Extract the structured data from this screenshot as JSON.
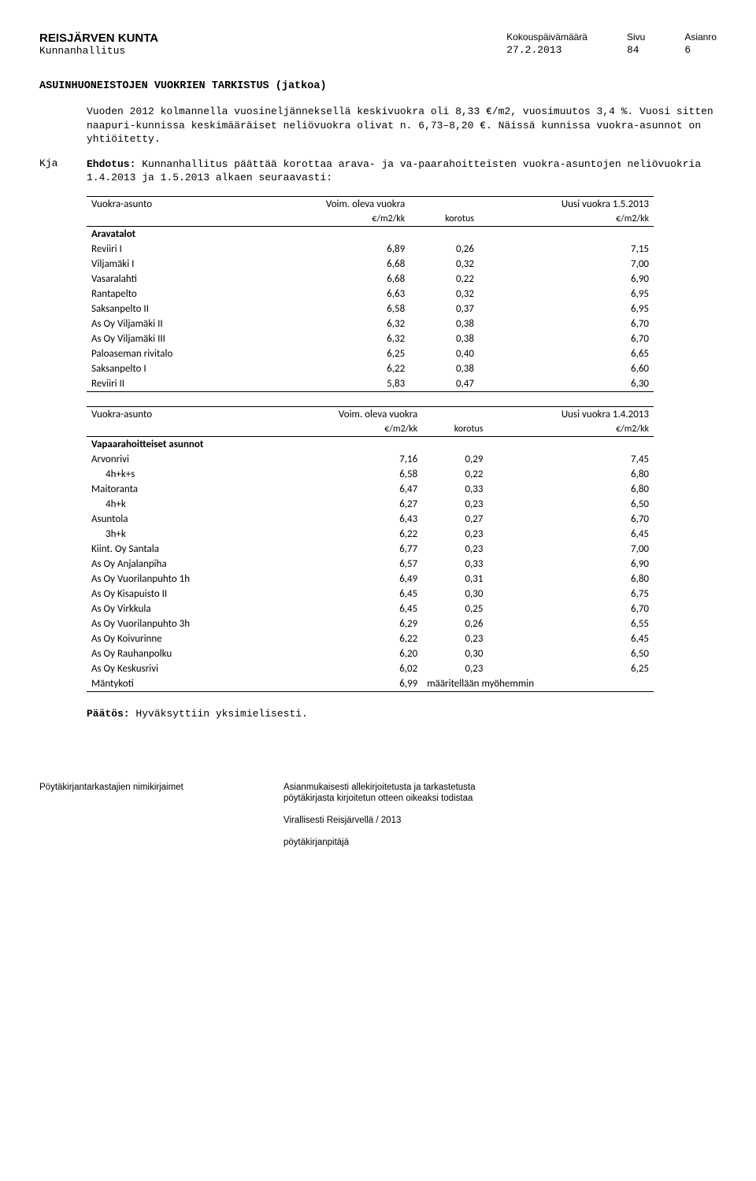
{
  "header": {
    "org": "REISJÄRVEN KUNTA",
    "org_sub": "Kunnanhallitus",
    "date_label": "Kokouspäivämäärä",
    "date": "27.2.2013",
    "page_label": "Sivu",
    "page": "84",
    "asia_label": "Asianro",
    "asia": "6"
  },
  "title": "ASUINHUONEISTOJEN VUOKRIEN TARKISTUS (jatkoa)",
  "para1": "Vuoden 2012 kolmannella vuosineljänneksellä keskivuokra oli 8,33 €/m2, vuosimuutos 3,4 %. Vuosi sitten naapuri-kunnissa keskimääräiset neliövuokra olivat n. 6,73–8,20 €. Näissä kunnissa vuokra-asunnot on yhtiöitetty.",
  "kja_label": "Kja",
  "kja_body_prefix": "Ehdotus:",
  "kja_body": " Kunnanhallitus päättää korottaa arava- ja va-paarahoitteisten vuokra-asuntojen neliövuokria 1.4.2013 ja 1.5.2013 alkaen seuraavasti:",
  "table1": {
    "h1": "Vuokra-asunto",
    "h2": "Voim. oleva vuokra",
    "h3": "Uusi vuokra 1.5.2013",
    "s2": "€/m2/kk",
    "s3": "korotus",
    "s4": "€/m2/kk",
    "group": "Aravatalot",
    "rows": [
      {
        "n": "Reviiri I",
        "a": "6,89",
        "b": "0,26",
        "c": "7,15"
      },
      {
        "n": "Viljamäki I",
        "a": "6,68",
        "b": "0,32",
        "c": "7,00"
      },
      {
        "n": "Vasaralahti",
        "a": "6,68",
        "b": "0,22",
        "c": "6,90"
      },
      {
        "n": "Rantapelto",
        "a": "6,63",
        "b": "0,32",
        "c": "6,95"
      },
      {
        "n": "Saksanpelto II",
        "a": "6,58",
        "b": "0,37",
        "c": "6,95"
      },
      {
        "n": "As Oy Viljamäki II",
        "a": "6,32",
        "b": "0,38",
        "c": "6,70"
      },
      {
        "n": "As Oy Viljamäki III",
        "a": "6,32",
        "b": "0,38",
        "c": "6,70"
      },
      {
        "n": "Paloaseman rivitalo",
        "a": "6,25",
        "b": "0,40",
        "c": "6,65"
      },
      {
        "n": "Saksanpelto I",
        "a": "6,22",
        "b": "0,38",
        "c": "6,60"
      },
      {
        "n": "Reviiri II",
        "a": "5,83",
        "b": "0,47",
        "c": "6,30"
      }
    ]
  },
  "table2": {
    "h1": "Vuokra-asunto",
    "h2": "Voim. oleva vuokra",
    "h3": "Uusi vuokra 1.4.2013",
    "s2": "€/m2/kk",
    "s3": "korotus",
    "s4": "€/m2/kk",
    "group": "Vapaarahoitteiset asunnot",
    "rows": [
      {
        "n": "Arvonrivi",
        "a": "7,16",
        "b": "0,29",
        "c": "7,45"
      },
      {
        "n": "4h+k+s",
        "a": "6,58",
        "b": "0,22",
        "c": "6,80",
        "indent": true
      },
      {
        "n": "Maitoranta",
        "a": "6,47",
        "b": "0,33",
        "c": "6,80"
      },
      {
        "n": "4h+k",
        "a": "6,27",
        "b": "0,23",
        "c": "6,50",
        "indent": true
      },
      {
        "n": "Asuntola",
        "a": "6,43",
        "b": "0,27",
        "c": "6,70"
      },
      {
        "n": "3h+k",
        "a": "6,22",
        "b": "0,23",
        "c": "6,45",
        "indent": true
      },
      {
        "n": "Kiint. Oy Santala",
        "a": "6,77",
        "b": "0,23",
        "c": "7,00"
      },
      {
        "n": "As Oy Anjalanpiha",
        "a": "6,57",
        "b": "0,33",
        "c": "6,90"
      },
      {
        "n": "As Oy Vuorilanpuhto 1h",
        "a": "6,49",
        "b": "0,31",
        "c": "6,80"
      },
      {
        "n": "As Oy Kisapuisto II",
        "a": "6,45",
        "b": "0,30",
        "c": "6,75"
      },
      {
        "n": "As Oy Virkkula",
        "a": "6,45",
        "b": "0,25",
        "c": "6,70"
      },
      {
        "n": "As Oy Vuorilanpuhto 3h",
        "a": "6,29",
        "b": "0,26",
        "c": "6,55"
      },
      {
        "n": "As Oy Koivurinne",
        "a": "6,22",
        "b": "0,23",
        "c": "6,45"
      },
      {
        "n": "As Oy Rauhanpolku",
        "a": "6,20",
        "b": "0,30",
        "c": "6,50"
      },
      {
        "n": "As Oy Keskusrivi",
        "a": "6,02",
        "b": "0,23",
        "c": "6,25"
      },
      {
        "n": "Mäntykoti",
        "a": "6,99",
        "b": "",
        "c": "määritellään myöhemmin",
        "span": true
      }
    ]
  },
  "decision_bold": "Päätös:",
  "decision_rest": " Hyväksyttiin yksimielisesti.",
  "footer": {
    "left": "Pöytäkirjantarkastajien nimikirjaimet",
    "r1": "Asianmukaisesti allekirjoitetusta ja tarkastetusta",
    "r2": "pöytäkirjasta kirjoitetun otteen oikeaksi todistaa",
    "viral": "Virallisesti Reisjärvellä     /      2013",
    "writer": "pöytäkirjanpitäjä"
  }
}
